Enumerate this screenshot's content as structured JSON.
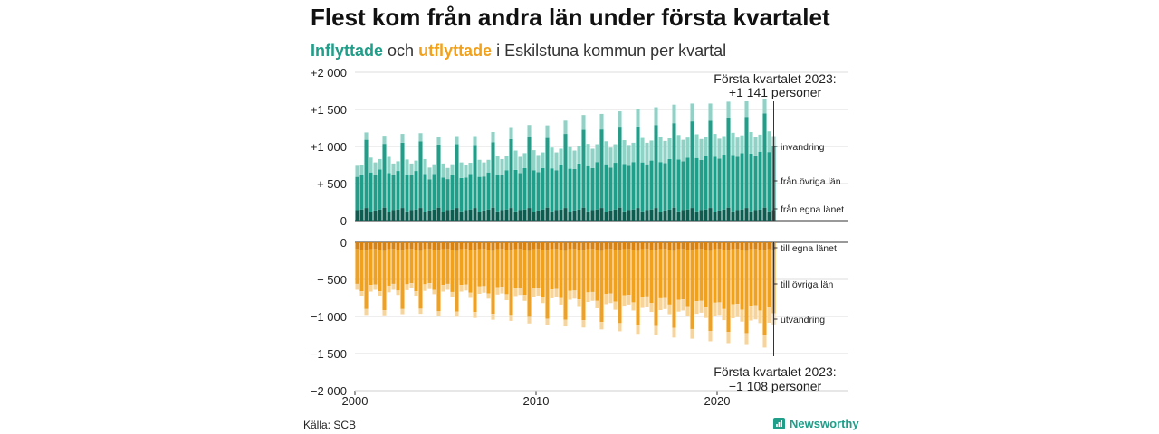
{
  "title": "Flest kom från andra län under första kvartalet",
  "subtitle": {
    "in_word": "Inflyttade",
    "and_word": "och",
    "out_word": "utflyttade",
    "rest": "i Eskilstuna kommun per kvartal"
  },
  "source": "Källa: SCB",
  "brand": {
    "name": "Newsworthy",
    "icon": "newsworthy-logo-icon"
  },
  "colors": {
    "in_own": "#0d5c50",
    "in_other": "#1f9e89",
    "in_abroad": "#8fd3c7",
    "out_own": "#d9820f",
    "out_other": "#f0a11e",
    "out_abroad": "#f7d49a"
  },
  "chart_data": {
    "type": "bar",
    "stacked": true,
    "x_tick_labels": [
      "2000",
      "2010",
      "2020"
    ],
    "x_range": [
      2000,
      2023.25
    ],
    "top_panel": {
      "ylim": [
        0,
        2000
      ],
      "y_tick_labels": [
        "+2 000",
        "+1 500",
        "+1 000",
        "+  500",
        "0"
      ],
      "series_labels": [
        "invandring",
        "från övriga län",
        "från egna länet"
      ],
      "annotation": [
        "Första kvartalet 2023:",
        "+1 141 personer"
      ]
    },
    "bottom_panel": {
      "ylim": [
        -2000,
        0
      ],
      "y_tick_labels": [
        "0",
        "−  500",
        "−1 000",
        "−1 500",
        "−2 000"
      ],
      "series_labels": [
        "till egna länet",
        "till övriga län",
        "utvandring"
      ],
      "annotation": [
        "Första kvartalet 2023:",
        "−1 108 personer"
      ]
    },
    "quarters_start": "2000 Q1",
    "quarters_end": "2023 Q1",
    "inflow": {
      "own_county": [
        140,
        150,
        170,
        120,
        135,
        150,
        175,
        120,
        140,
        150,
        170,
        125,
        140,
        150,
        170,
        120,
        135,
        150,
        175,
        120,
        140,
        150,
        170,
        125,
        140,
        150,
        170,
        120,
        135,
        150,
        175,
        125,
        140,
        150,
        170,
        125,
        140,
        150,
        170,
        120,
        135,
        150,
        175,
        125,
        140,
        150,
        170,
        120,
        135,
        150,
        175,
        125,
        140,
        150,
        170,
        120,
        135,
        150,
        175,
        125,
        140,
        150,
        170,
        125,
        140,
        150,
        170,
        120,
        135,
        150,
        175,
        125,
        140,
        150,
        170,
        125,
        140,
        150,
        170,
        120,
        135,
        150,
        175,
        125,
        140,
        150,
        170,
        125,
        140,
        150,
        175,
        125,
        140
      ],
      "other_county": [
        450,
        470,
        920,
        530,
        480,
        540,
        860,
        520,
        470,
        520,
        880,
        500,
        480,
        520,
        900,
        510,
        420,
        480,
        850,
        460,
        420,
        470,
        860,
        450,
        440,
        480,
        850,
        470,
        460,
        500,
        880,
        500,
        480,
        530,
        930,
        560,
        500,
        560,
        960,
        560,
        520,
        560,
        940,
        580,
        540,
        600,
        1000,
        580,
        560,
        620,
        1050,
        610,
        570,
        640,
        1060,
        640,
        580,
        630,
        1080,
        640,
        600,
        640,
        1100,
        660,
        620,
        660,
        1120,
        670,
        640,
        680,
        1140,
        700,
        660,
        700,
        1170,
        720,
        680,
        720,
        1180,
        740,
        700,
        740,
        1210,
        760,
        720,
        760,
        1230,
        780,
        740,
        780,
        1270,
        800,
        860
      ],
      "abroad": [
        150,
        130,
        100,
        200,
        170,
        140,
        110,
        220,
        160,
        130,
        120,
        200,
        150,
        140,
        110,
        200,
        160,
        130,
        100,
        190,
        150,
        140,
        110,
        210,
        170,
        150,
        120,
        230,
        190,
        170,
        140,
        250,
        210,
        190,
        150,
        260,
        220,
        200,
        160,
        270,
        230,
        210,
        170,
        280,
        240,
        220,
        180,
        290,
        250,
        230,
        200,
        300,
        260,
        240,
        210,
        310,
        270,
        250,
        220,
        320,
        280,
        260,
        230,
        330,
        290,
        270,
        240,
        340,
        300,
        280,
        250,
        330,
        290,
        270,
        240,
        320,
        280,
        260,
        230,
        310,
        270,
        250,
        220,
        300,
        260,
        240,
        210,
        290,
        250,
        230,
        200,
        280,
        140
      ]
    },
    "outflow": {
      "own_county": [
        -90,
        -100,
        -110,
        -95,
        -90,
        -100,
        -115,
        -95,
        -90,
        -100,
        -110,
        -95,
        -90,
        -100,
        -115,
        -95,
        -90,
        -100,
        -110,
        -95,
        -90,
        -100,
        -115,
        -95,
        -90,
        -100,
        -110,
        -95,
        -90,
        -100,
        -115,
        -95,
        -90,
        -100,
        -110,
        -95,
        -90,
        -100,
        -115,
        -95,
        -90,
        -100,
        -110,
        -95,
        -90,
        -100,
        -115,
        -95,
        -90,
        -100,
        -110,
        -95,
        -90,
        -100,
        -115,
        -95,
        -90,
        -100,
        -110,
        -95,
        -90,
        -100,
        -115,
        -95,
        -90,
        -100,
        -110,
        -95,
        -90,
        -100,
        -115,
        -95,
        -90,
        -100,
        -110,
        -95,
        -90,
        -100,
        -115,
        -95,
        -90,
        -100,
        -110,
        -95,
        -90,
        -100,
        -115,
        -95,
        -90,
        -100,
        -110,
        -95,
        -100
      ],
      "other_county": [
        -470,
        -560,
        -790,
        -480,
        -480,
        -560,
        -800,
        -490,
        -470,
        -550,
        -790,
        -470,
        -460,
        -560,
        -780,
        -470,
        -460,
        -540,
        -820,
        -480,
        -470,
        -570,
        -820,
        -480,
        -480,
        -580,
        -830,
        -500,
        -500,
        -590,
        -850,
        -510,
        -510,
        -600,
        -870,
        -520,
        -520,
        -610,
        -890,
        -530,
        -530,
        -640,
        -920,
        -540,
        -540,
        -650,
        -930,
        -560,
        -560,
        -670,
        -940,
        -580,
        -580,
        -690,
        -960,
        -600,
        -600,
        -700,
        -980,
        -620,
        -620,
        -710,
        -1000,
        -640,
        -640,
        -720,
        -1020,
        -660,
        -660,
        -740,
        -1040,
        -680,
        -680,
        -760,
        -1060,
        -700,
        -700,
        -780,
        -1080,
        -720,
        -720,
        -800,
        -1100,
        -740,
        -740,
        -810,
        -1110,
        -760,
        -760,
        -820,
        -1140,
        -780,
        -860
      ],
      "abroad": [
        -80,
        -60,
        -80,
        -90,
        -70,
        -60,
        -70,
        -90,
        -80,
        -60,
        -70,
        -80,
        -70,
        -60,
        -70,
        -90,
        -80,
        -60,
        -70,
        -90,
        -80,
        -70,
        -70,
        -90,
        -80,
        -70,
        -80,
        -100,
        -90,
        -70,
        -80,
        -100,
        -90,
        -80,
        -80,
        -110,
        -100,
        -80,
        -90,
        -110,
        -100,
        -80,
        -90,
        -120,
        -110,
        -90,
        -90,
        -120,
        -110,
        -90,
        -100,
        -130,
        -120,
        -100,
        -100,
        -140,
        -130,
        -110,
        -110,
        -140,
        -130,
        -110,
        -120,
        -150,
        -140,
        -120,
        -120,
        -160,
        -150,
        -130,
        -130,
        -160,
        -150,
        -130,
        -130,
        -170,
        -160,
        -140,
        -140,
        -180,
        -170,
        -150,
        -150,
        -190,
        -180,
        -160,
        -160,
        -200,
        -190,
        -170,
        -170,
        -210,
        -148
      ]
    }
  }
}
